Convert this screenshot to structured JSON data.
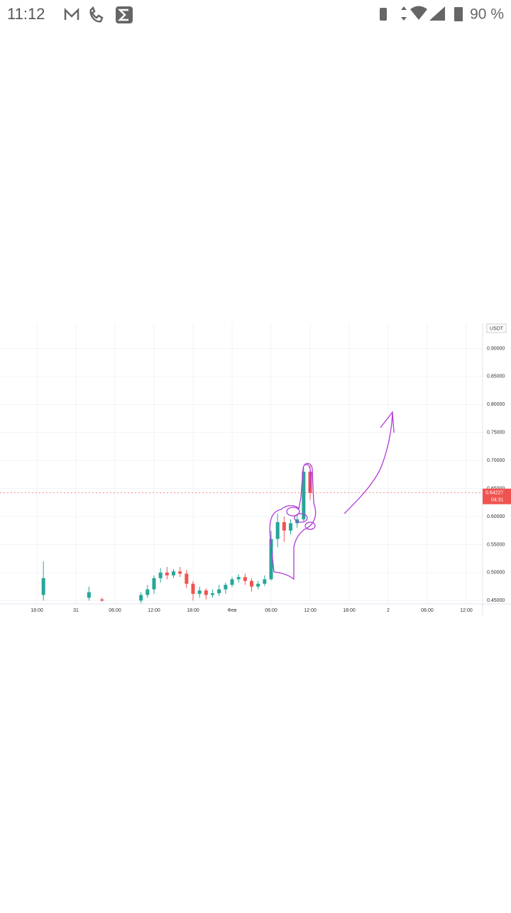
{
  "status_bar": {
    "time": "11:12",
    "battery": "90 %"
  },
  "chart_data": {
    "type": "candlestick",
    "currency": "USDT",
    "categories": [
      null,
      null,
      null,
      null,
      null,
      "18:00",
      null,
      null,
      null,
      null,
      null,
      "31",
      null,
      null,
      null,
      null,
      null,
      "06:00",
      null,
      null,
      null,
      null,
      null,
      "12:00",
      null,
      null,
      null,
      null,
      null,
      "18:00",
      null,
      null,
      null,
      null,
      null,
      "Фев",
      null,
      null,
      null,
      null,
      null,
      "06:00",
      null,
      null,
      null,
      null,
      null,
      "12:00",
      null,
      null,
      null,
      null,
      null,
      "18:00",
      null,
      null,
      null,
      null,
      null,
      "2",
      null,
      null,
      null,
      null,
      null,
      "06:00",
      null,
      null,
      null,
      null,
      null,
      "12:00",
      null,
      null
    ],
    "open": [
      null,
      null,
      null,
      null,
      null,
      null,
      0.46,
      null,
      null,
      null,
      null,
      null,
      null,
      0.455,
      null,
      0.452,
      null,
      null,
      null,
      null,
      null,
      0.45,
      0.46,
      0.47,
      0.49,
      0.5,
      0.495,
      0.502,
      0.498,
      0.48,
      0.462,
      0.468,
      0.46,
      0.463,
      0.47,
      0.478,
      0.488,
      0.492,
      0.485,
      0.475,
      0.48,
      0.488,
      0.56,
      0.59,
      0.575,
      0.588,
      0.595,
      0.68,
      null,
      null,
      null,
      null,
      null,
      null,
      null,
      null,
      null,
      null,
      null,
      null,
      null,
      null,
      null,
      null,
      null,
      null,
      null,
      null,
      null,
      null,
      null,
      null,
      null,
      null
    ],
    "high": [
      null,
      null,
      null,
      null,
      null,
      null,
      0.52,
      null,
      null,
      null,
      null,
      null,
      null,
      0.475,
      null,
      0.455,
      null,
      null,
      null,
      null,
      null,
      0.465,
      0.478,
      0.495,
      0.508,
      0.51,
      0.506,
      0.51,
      0.505,
      0.485,
      0.475,
      0.472,
      0.47,
      0.478,
      0.482,
      0.492,
      0.497,
      0.498,
      0.49,
      0.485,
      0.495,
      0.575,
      0.605,
      0.6,
      0.595,
      0.603,
      0.688,
      0.69,
      null,
      null,
      null,
      null,
      null,
      null,
      null,
      null,
      null,
      null,
      null,
      null,
      null,
      null,
      null,
      null,
      null,
      null,
      null,
      null,
      null,
      null,
      null,
      null,
      null,
      null
    ],
    "low": [
      null,
      null,
      null,
      null,
      null,
      null,
      0.45,
      null,
      null,
      null,
      null,
      null,
      null,
      0.45,
      null,
      0.448,
      null,
      null,
      null,
      null,
      null,
      0.445,
      0.455,
      0.462,
      0.482,
      0.488,
      0.49,
      0.492,
      0.472,
      0.45,
      0.455,
      0.452,
      0.455,
      0.458,
      0.462,
      0.474,
      0.482,
      0.478,
      0.466,
      0.47,
      0.476,
      0.486,
      0.545,
      0.555,
      0.568,
      0.58,
      0.59,
      0.63,
      null,
      null,
      null,
      null,
      null,
      null,
      null,
      null,
      null,
      null,
      null,
      null,
      null,
      null,
      null,
      null,
      null,
      null,
      null,
      null,
      null,
      null,
      null,
      null,
      null,
      null
    ],
    "close": [
      null,
      null,
      null,
      null,
      null,
      null,
      0.49,
      null,
      null,
      null,
      null,
      null,
      null,
      0.465,
      null,
      0.45,
      null,
      null,
      null,
      null,
      null,
      0.46,
      0.47,
      0.49,
      0.5,
      0.495,
      0.502,
      0.498,
      0.48,
      0.462,
      0.468,
      0.46,
      0.463,
      0.47,
      0.478,
      0.488,
      0.492,
      0.485,
      0.475,
      0.48,
      0.488,
      0.56,
      0.59,
      0.575,
      0.588,
      0.595,
      0.68,
      0.642,
      null,
      null,
      null,
      null,
      null,
      null,
      null,
      null,
      null,
      null,
      null,
      null,
      null,
      null,
      null,
      null,
      null,
      null,
      null,
      null,
      null,
      null,
      null,
      null,
      null,
      null
    ],
    "up_color": "#26a69a",
    "down_color": "#ef5350",
    "ylim": [
      0.444,
      0.945
    ],
    "yticks": [
      {
        "value": 0.45,
        "label": "0.45000"
      },
      {
        "value": 0.5,
        "label": "0.50000"
      },
      {
        "value": 0.55,
        "label": "0.55000"
      },
      {
        "value": 0.6,
        "label": "0.60000"
      },
      {
        "value": 0.65,
        "label": "0.65000"
      },
      {
        "value": 0.7,
        "label": "0.70000"
      },
      {
        "value": 0.75,
        "label": "0.75000"
      },
      {
        "value": 0.8,
        "label": "0.80000"
      },
      {
        "value": 0.85,
        "label": "0.85000"
      },
      {
        "value": 0.9,
        "label": "0.90000"
      }
    ],
    "last_price": 0.64227,
    "countdown": "04:31",
    "grid": true
  }
}
